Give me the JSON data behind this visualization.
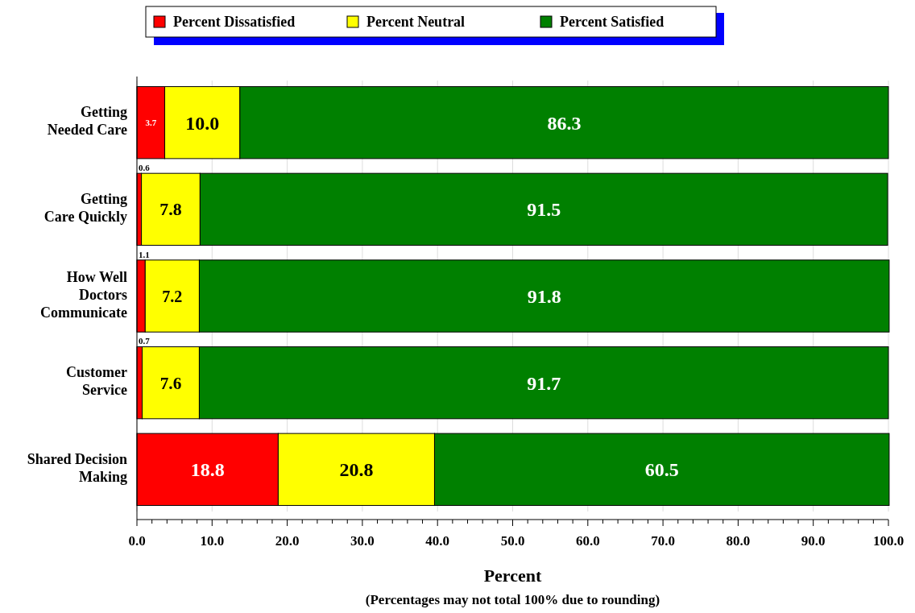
{
  "chart_data": {
    "type": "bar",
    "orientation": "horizontal",
    "stacked": true,
    "xlabel": "Percent",
    "categories": [
      "Getting\nNeeded Care",
      "Getting\nCare Quickly",
      "How Well\nDoctors\nCommunicate",
      "Customer\nService",
      "Shared Decision\nMaking"
    ],
    "series": [
      {
        "name": "Percent Dissatisfied",
        "color": "#ff0000",
        "values": [
          3.7,
          0.6,
          1.1,
          0.7,
          18.8
        ],
        "value_labels": [
          "3.7",
          "0.6",
          "1.1",
          "0.7",
          "18.8"
        ]
      },
      {
        "name": "Percent Neutral",
        "color": "#ffff00",
        "values": [
          10.0,
          7.8,
          7.2,
          7.6,
          20.8
        ],
        "value_labels": [
          "10.0",
          "7.8",
          "7.2",
          "7.6",
          "20.8"
        ]
      },
      {
        "name": "Percent Satisfied",
        "color": "#008000",
        "values": [
          86.3,
          91.5,
          91.8,
          91.7,
          60.5
        ],
        "value_labels": [
          "86.3",
          "91.5",
          "91.8",
          "91.7",
          "60.5"
        ]
      }
    ],
    "xlim": [
      0,
      100
    ],
    "xticks": [
      {
        "value": 0,
        "label": "0.0"
      },
      {
        "value": 2,
        "label": null
      },
      {
        "value": 4,
        "label": null
      },
      {
        "value": 6,
        "label": null
      },
      {
        "value": 8,
        "label": null
      },
      {
        "value": 10,
        "label": "10.0"
      },
      {
        "value": 12,
        "label": null
      },
      {
        "value": 14,
        "label": null
      },
      {
        "value": 16,
        "label": null
      },
      {
        "value": 18,
        "label": null
      },
      {
        "value": 20,
        "label": "20.0"
      },
      {
        "value": 22,
        "label": null
      },
      {
        "value": 24,
        "label": null
      },
      {
        "value": 26,
        "label": null
      },
      {
        "value": 28,
        "label": null
      },
      {
        "value": 30,
        "label": "30.0"
      },
      {
        "value": 32,
        "label": null
      },
      {
        "value": 34,
        "label": null
      },
      {
        "value": 36,
        "label": null
      },
      {
        "value": 38,
        "label": null
      },
      {
        "value": 40,
        "label": "40.0"
      },
      {
        "value": 42,
        "label": null
      },
      {
        "value": 44,
        "label": null
      },
      {
        "value": 46,
        "label": null
      },
      {
        "value": 48,
        "label": null
      },
      {
        "value": 50,
        "label": "50.0"
      },
      {
        "value": 52,
        "label": null
      },
      {
        "value": 54,
        "label": null
      },
      {
        "value": 56,
        "label": null
      },
      {
        "value": 58,
        "label": null
      },
      {
        "value": 60,
        "label": "60.0"
      },
      {
        "value": 62,
        "label": null
      },
      {
        "value": 64,
        "label": null
      },
      {
        "value": 66,
        "label": null
      },
      {
        "value": 68,
        "label": null
      },
      {
        "value": 70,
        "label": "70.0"
      },
      {
        "value": 72,
        "label": null
      },
      {
        "value": 74,
        "label": null
      },
      {
        "value": 76,
        "label": null
      },
      {
        "value": 78,
        "label": null
      },
      {
        "value": 80,
        "label": "80.0"
      },
      {
        "value": 82,
        "label": null
      },
      {
        "value": 84,
        "label": null
      },
      {
        "value": 86,
        "label": null
      },
      {
        "value": 88,
        "label": null
      },
      {
        "value": 90,
        "label": "90.0"
      },
      {
        "value": 92,
        "label": null
      },
      {
        "value": 94,
        "label": null
      },
      {
        "value": 96,
        "label": null
      },
      {
        "value": 98,
        "label": null
      },
      {
        "value": 100,
        "label": "100.0"
      }
    ],
    "grid": "x",
    "legend": "top",
    "annotations": [
      "(Percentages may not total 100% due to rounding)"
    ]
  }
}
